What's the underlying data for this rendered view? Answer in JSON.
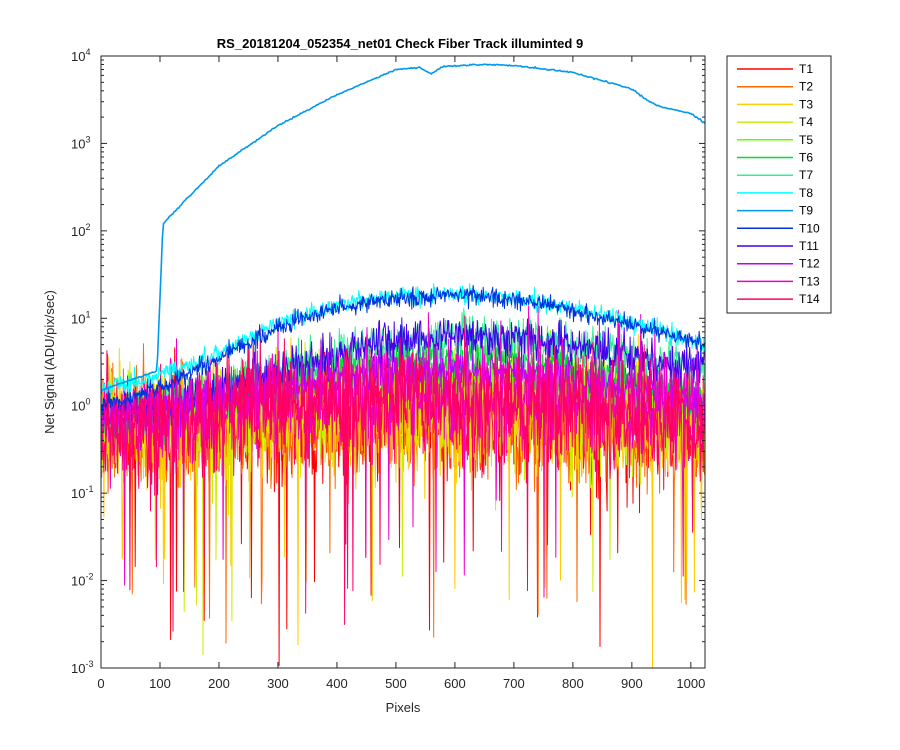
{
  "chart_data": {
    "type": "line",
    "title": "RS_20181204_052354_net01   Check Fiber     Track illuminted 9",
    "xlabel": "Pixels",
    "ylabel": "Net Signal (ADU/pix/sec)",
    "xlim": [
      0,
      1024
    ],
    "ylim": [
      0.001,
      10000
    ],
    "yscale": "log",
    "x_ticks": [
      0,
      100,
      200,
      300,
      400,
      500,
      600,
      700,
      800,
      900,
      1000
    ],
    "x_tick_labels": [
      "0",
      "100",
      "200",
      "300",
      "400",
      "500",
      "600",
      "700",
      "800",
      "900",
      "1000"
    ],
    "y_ticks": [
      0.001,
      0.01,
      0.1,
      1,
      10,
      100,
      1000,
      10000
    ],
    "y_tick_labels": [
      {
        "base": "10",
        "exp": "-3"
      },
      {
        "base": "10",
        "exp": "-2"
      },
      {
        "base": "10",
        "exp": "-1"
      },
      {
        "base": "10",
        "exp": "0"
      },
      {
        "base": "10",
        "exp": "1"
      },
      {
        "base": "10",
        "exp": "2"
      },
      {
        "base": "10",
        "exp": "3"
      },
      {
        "base": "10",
        "exp": "4"
      }
    ],
    "grid": false,
    "legend_position": "outside-top-right",
    "series": [
      {
        "name": "T1",
        "color": "#ff0000",
        "profile": {
          "x": [
            0,
            150,
            300,
            450,
            600,
            750,
            900,
            1024
          ],
          "y": [
            0.5,
            0.55,
            0.6,
            0.65,
            0.65,
            0.6,
            0.55,
            0.5
          ]
        },
        "noise": "high"
      },
      {
        "name": "T2",
        "color": "#ff6a00",
        "profile": {
          "x": [
            0,
            150,
            300,
            450,
            600,
            750,
            900,
            1024
          ],
          "y": [
            0.5,
            0.55,
            0.65,
            0.7,
            0.7,
            0.65,
            0.55,
            0.5
          ]
        },
        "noise": "high"
      },
      {
        "name": "T3",
        "color": "#ffcc00",
        "profile": {
          "x": [
            0,
            150,
            300,
            450,
            600,
            750,
            900,
            1024
          ],
          "y": [
            0.5,
            0.6,
            0.7,
            0.8,
            0.8,
            0.7,
            0.6,
            0.5
          ]
        },
        "noise": "high"
      },
      {
        "name": "T4",
        "color": "#ccee00",
        "profile": {
          "x": [
            0,
            150,
            300,
            450,
            600,
            750,
            900,
            1024
          ],
          "y": [
            0.55,
            0.7,
            0.9,
            1.1,
            1.1,
            0.9,
            0.7,
            0.55
          ]
        },
        "noise": "high"
      },
      {
        "name": "T5",
        "color": "#66ff00",
        "profile": {
          "x": [
            0,
            150,
            300,
            450,
            600,
            750,
            900,
            1024
          ],
          "y": [
            0.6,
            0.9,
            1.4,
            2.0,
            2.2,
            1.8,
            1.2,
            0.8
          ]
        },
        "noise": "medium"
      },
      {
        "name": "T6",
        "color": "#00dd33",
        "profile": {
          "x": [
            0,
            150,
            300,
            450,
            600,
            750,
            900,
            1024
          ],
          "y": [
            0.7,
            1.1,
            2.0,
            3.2,
            3.6,
            3.0,
            2.0,
            1.3
          ]
        },
        "noise": "medium"
      },
      {
        "name": "T7",
        "color": "#33ee99",
        "profile": {
          "x": [
            0,
            150,
            300,
            450,
            600,
            750,
            900,
            1024
          ],
          "y": [
            0.8,
            1.2,
            2.5,
            5.0,
            6.5,
            5.5,
            3.8,
            2.5
          ]
        },
        "noise": "medium"
      },
      {
        "name": "T8",
        "color": "#00ffff",
        "profile": {
          "x": [
            0,
            100,
            200,
            300,
            400,
            500,
            600,
            700,
            800,
            900,
            1024
          ],
          "y": [
            1.5,
            2.2,
            4.0,
            9.0,
            14.0,
            18.0,
            19.0,
            17.0,
            13.0,
            9.0,
            5.0
          ]
        },
        "noise": "low"
      },
      {
        "name": "T9",
        "color": "#0099ee",
        "profile": {
          "x": [
            0,
            95,
            105,
            150,
            200,
            300,
            400,
            500,
            540,
            560,
            580,
            650,
            700,
            800,
            900,
            930,
            950,
            1000,
            1024
          ],
          "y": [
            1.5,
            2.5,
            120,
            250,
            550,
            1600,
            3600,
            7000,
            7400,
            6300,
            7600,
            8000,
            7800,
            6500,
            4200,
            3000,
            2600,
            2200,
            1700
          ]
        },
        "noise": "none"
      },
      {
        "name": "T10",
        "color": "#0033dd",
        "profile": {
          "x": [
            0,
            100,
            200,
            300,
            400,
            500,
            600,
            700,
            800,
            900,
            1024
          ],
          "y": [
            1.0,
            1.6,
            3.5,
            8.0,
            13.0,
            17.0,
            18.5,
            16.5,
            12.5,
            8.5,
            5.0
          ]
        },
        "noise": "low"
      },
      {
        "name": "T11",
        "color": "#4400ee",
        "profile": {
          "x": [
            0,
            150,
            300,
            450,
            600,
            750,
            900,
            1024
          ],
          "y": [
            0.8,
            1.1,
            2.5,
            5.0,
            6.5,
            5.5,
            3.8,
            2.4
          ]
        },
        "noise": "medium"
      },
      {
        "name": "T12",
        "color": "#bb00ff",
        "profile": {
          "x": [
            0,
            150,
            300,
            450,
            600,
            750,
            900,
            1024
          ],
          "y": [
            0.7,
            1.0,
            1.6,
            2.3,
            2.6,
            2.2,
            1.6,
            1.1
          ]
        },
        "noise": "medium"
      },
      {
        "name": "T13",
        "color": "#ee00cc",
        "profile": {
          "x": [
            0,
            150,
            300,
            450,
            600,
            750,
            900,
            1024
          ],
          "y": [
            0.6,
            0.8,
            1.1,
            1.4,
            1.5,
            1.3,
            1.0,
            0.8
          ]
        },
        "noise": "high"
      },
      {
        "name": "T14",
        "color": "#ff0066",
        "profile": {
          "x": [
            0,
            150,
            300,
            450,
            600,
            750,
            900,
            1024
          ],
          "y": [
            0.55,
            0.7,
            0.9,
            1.1,
            1.1,
            0.95,
            0.75,
            0.6
          ]
        },
        "noise": "high"
      }
    ]
  }
}
